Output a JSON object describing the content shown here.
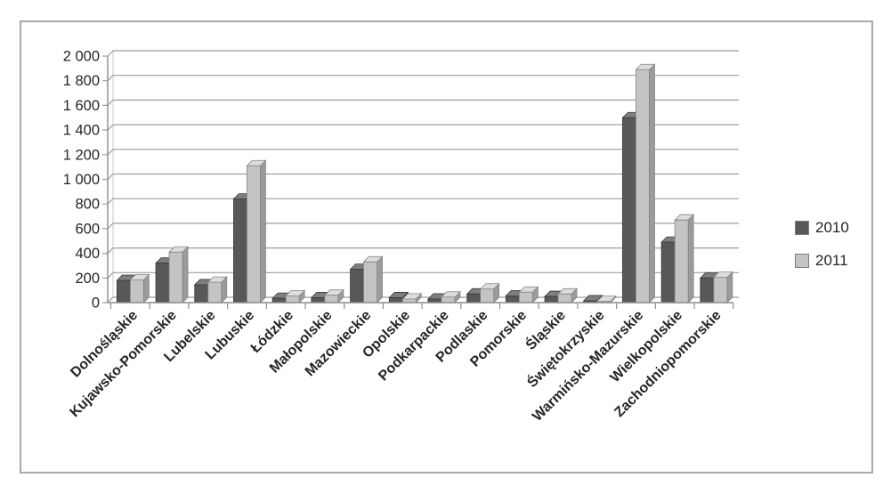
{
  "chart_data": {
    "type": "bar",
    "style": "3d-clustered-column",
    "title": "",
    "xlabel": "",
    "ylabel": "",
    "ylim": [
      0,
      2000
    ],
    "y_tick_step": 200,
    "grid": true,
    "legend_position": "right",
    "categories": [
      "Dolnośląskie",
      "Kujawsko-Pomorskie",
      "Lubelskie",
      "Lubuskie",
      "Łódzkie",
      "Małopolskie",
      "Mazowieckie",
      "Opolskie",
      "Podkarpackie",
      "Podlaskie",
      "Pomorskie",
      "Śląskie",
      "Świętokrzyskie",
      "Warmińsko-Mazurskie",
      "Wielkopolskie",
      "Zachodniopomorskie"
    ],
    "y_ticks": [
      "0",
      "200",
      "400",
      "600",
      "800",
      "1 000",
      "1 200",
      "1 400",
      "1 600",
      "1 800",
      "2 000"
    ],
    "series": [
      {
        "name": "2010",
        "values": [
          180,
          320,
          145,
          840,
          35,
          40,
          270,
          40,
          30,
          70,
          55,
          50,
          15,
          1500,
          490,
          200
        ],
        "color_front": "#585858",
        "color_top": "#7e7e7e",
        "color_side": "#3f3f3f",
        "outline": "#3a3a3a"
      },
      {
        "name": "2011",
        "values": [
          185,
          410,
          165,
          1110,
          55,
          60,
          330,
          30,
          45,
          110,
          85,
          70,
          10,
          1890,
          670,
          205
        ],
        "color_front": "#c4c4c4",
        "color_top": "#dddddd",
        "color_side": "#9b9b9b",
        "outline": "#858585"
      }
    ]
  },
  "colors": {
    "gridline": "#9e9e9e",
    "axis": "#8c8c8c",
    "tick": "#8c8c8c",
    "label_text": "#262626",
    "frame_border": "#a9a9a9",
    "background": "#ffffff"
  }
}
